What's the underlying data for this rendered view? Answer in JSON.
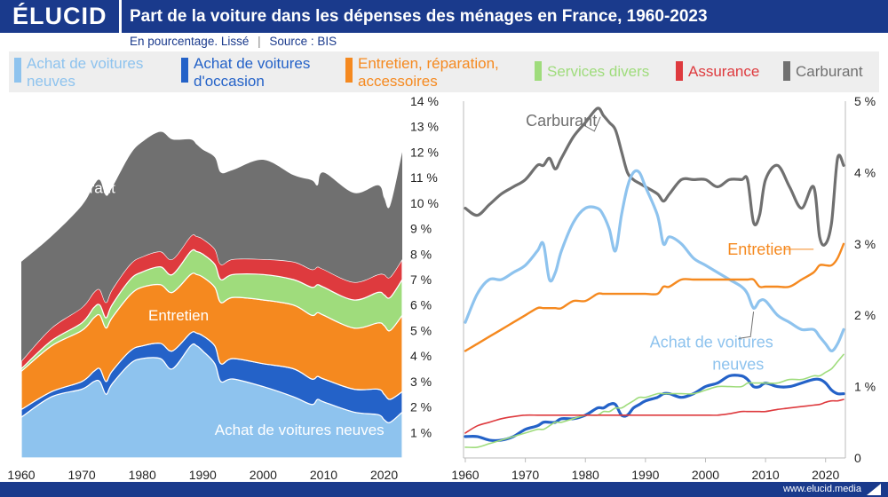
{
  "header": {
    "logo": "ÉLUCID",
    "title": "Part de la voiture dans les dépenses des ménages en France, 1960-2023",
    "subtitle_units": "En pourcentage. Lissé",
    "subtitle_sep": "|",
    "subtitle_source": "Source : BIS"
  },
  "legend": {
    "items": [
      {
        "line1": "Achat de voitures",
        "line2": "neuves",
        "color": "#8ec3ee"
      },
      {
        "line1": "Achat de voitures",
        "line2": "d'occasion",
        "color": "#2462c8"
      },
      {
        "line1": "Entretien, réparation,",
        "line2": "accessoires",
        "color": "#f5891f"
      },
      {
        "line1": "Services divers",
        "line2": "",
        "color": "#9fdc7c"
      },
      {
        "line1": "Assurance",
        "line2": "",
        "color": "#de3a3e"
      },
      {
        "line1": "Carburant",
        "line2": "",
        "color": "#707070"
      }
    ]
  },
  "footer": {
    "url": "www.elucid.media"
  },
  "chart_data": [
    {
      "type": "area",
      "stacked": true,
      "x": [
        1960,
        1965,
        1970,
        1972,
        1973,
        1974,
        1975,
        1978,
        1980,
        1983,
        1985,
        1988,
        1989,
        1990,
        1992,
        1993,
        1995,
        2000,
        2005,
        2008,
        2009,
        2010,
        2015,
        2019,
        2020,
        2021,
        2023
      ],
      "series": [
        {
          "name": "Achat de voitures neuves",
          "color": "#8ec3ee",
          "values": [
            1.6,
            2.4,
            2.7,
            3.0,
            3.0,
            2.5,
            2.9,
            3.7,
            3.9,
            3.9,
            3.5,
            4.4,
            4.4,
            4.2,
            3.7,
            3.0,
            3.1,
            2.8,
            2.4,
            2.1,
            2.3,
            2.2,
            1.8,
            1.7,
            1.5,
            1.4,
            1.8
          ]
        },
        {
          "name": "Achat de voitures d'occasion",
          "color": "#2462c8",
          "values": [
            0.3,
            0.2,
            0.3,
            0.4,
            0.5,
            0.5,
            0.5,
            0.5,
            0.5,
            0.6,
            0.7,
            0.5,
            0.5,
            0.6,
            0.7,
            0.7,
            0.8,
            0.9,
            1.1,
            1.0,
            0.9,
            0.9,
            0.9,
            1.0,
            1.0,
            0.9,
            0.8
          ]
        },
        {
          "name": "Entretien, réparation, accessoires",
          "color": "#f5891f",
          "values": [
            1.5,
            1.8,
            2.0,
            2.1,
            2.1,
            2.1,
            2.1,
            2.2,
            2.3,
            2.3,
            2.3,
            2.3,
            2.3,
            2.3,
            2.3,
            2.4,
            2.4,
            2.5,
            2.5,
            2.5,
            2.5,
            2.5,
            2.4,
            2.6,
            2.7,
            2.7,
            3.0
          ]
        },
        {
          "name": "Services divers",
          "color": "#9fdc7c",
          "values": [
            0.1,
            0.2,
            0.3,
            0.4,
            0.4,
            0.4,
            0.5,
            0.6,
            0.6,
            0.7,
            0.7,
            0.9,
            0.9,
            0.9,
            0.9,
            0.9,
            0.9,
            1.0,
            1.0,
            1.1,
            1.1,
            1.1,
            1.1,
            1.2,
            1.2,
            1.3,
            1.4
          ]
        },
        {
          "name": "Assurance",
          "color": "#de3a3e",
          "values": [
            0.3,
            0.5,
            0.6,
            0.6,
            0.6,
            0.6,
            0.6,
            0.6,
            0.6,
            0.6,
            0.6,
            0.6,
            0.6,
            0.6,
            0.6,
            0.6,
            0.6,
            0.6,
            0.7,
            0.7,
            0.7,
            0.7,
            0.7,
            0.7,
            0.8,
            0.8,
            0.8
          ]
        },
        {
          "name": "Carburant",
          "color": "#707070",
          "values": [
            3.9,
            3.6,
            4.0,
            4.2,
            4.3,
            4.2,
            4.0,
            4.3,
            4.5,
            4.7,
            4.7,
            3.8,
            3.6,
            3.5,
            3.6,
            3.6,
            3.5,
            3.9,
            3.4,
            3.5,
            3.2,
            3.8,
            3.5,
            3.5,
            3.0,
            2.8,
            4.2
          ]
        }
      ],
      "xlim": [
        1960,
        2023
      ],
      "ylim": [
        0,
        14
      ],
      "x_ticks": [
        "1960",
        "1970",
        "1980",
        "1990",
        "2000",
        "2010",
        "2020"
      ],
      "y_ticks": [
        "1 %",
        "2 %",
        "3 %",
        "4 %",
        "5 %",
        "6 %",
        "7 %",
        "8 %",
        "9 %",
        "10 %",
        "11 %",
        "12 %",
        "13 %",
        "14 %"
      ],
      "annotations": [
        {
          "text": "Carburant",
          "x": 1970,
          "y": 10.4,
          "color": "#ffffff"
        },
        {
          "text": "Entretien",
          "x": 1986,
          "y": 5.4,
          "color": "#ffffff"
        },
        {
          "text": "Achat de voitures neuves",
          "x": 2006,
          "y": 0.9,
          "color": "#ffffff"
        }
      ],
      "grid": false
    },
    {
      "type": "line",
      "x": [
        1960,
        1962,
        1964,
        1966,
        1968,
        1970,
        1972,
        1973,
        1974,
        1975,
        1976,
        1978,
        1980,
        1982,
        1983,
        1984,
        1985,
        1986,
        1987,
        1988,
        1989,
        1990,
        1992,
        1993,
        1994,
        1996,
        1998,
        2000,
        2002,
        2004,
        2006,
        2007,
        2008,
        2009,
        2010,
        2012,
        2014,
        2016,
        2018,
        2019,
        2020,
        2021,
        2022,
        2023
      ],
      "series": [
        {
          "name": "Carburant",
          "color": "#707070",
          "values": [
            3.5,
            3.4,
            3.55,
            3.7,
            3.8,
            3.9,
            4.1,
            4.1,
            4.2,
            4.05,
            4.2,
            4.5,
            4.7,
            4.9,
            4.8,
            4.7,
            4.6,
            4.3,
            4.0,
            3.9,
            3.85,
            3.8,
            3.7,
            3.6,
            3.7,
            3.9,
            3.9,
            3.9,
            3.8,
            3.9,
            3.9,
            3.9,
            3.3,
            3.4,
            3.9,
            4.1,
            3.8,
            3.5,
            3.8,
            3.1,
            3.0,
            3.3,
            4.2,
            4.1
          ]
        },
        {
          "name": "Achat de voitures neuves",
          "color": "#8ec3ee",
          "values": [
            1.9,
            2.3,
            2.5,
            2.5,
            2.6,
            2.7,
            2.9,
            3.0,
            2.5,
            2.6,
            2.9,
            3.3,
            3.5,
            3.5,
            3.4,
            3.2,
            2.9,
            3.4,
            3.8,
            4.0,
            4.0,
            3.8,
            3.4,
            3.0,
            3.1,
            3.0,
            2.8,
            2.7,
            2.6,
            2.5,
            2.4,
            2.3,
            2.1,
            2.2,
            2.2,
            2.0,
            1.9,
            1.8,
            1.8,
            1.7,
            1.6,
            1.5,
            1.6,
            1.8
          ]
        },
        {
          "name": "Entretien",
          "color": "#f5891f",
          "values": [
            1.5,
            1.6,
            1.7,
            1.8,
            1.9,
            2.0,
            2.1,
            2.1,
            2.1,
            2.1,
            2.1,
            2.2,
            2.2,
            2.3,
            2.3,
            2.3,
            2.3,
            2.3,
            2.3,
            2.3,
            2.3,
            2.3,
            2.3,
            2.4,
            2.4,
            2.5,
            2.5,
            2.5,
            2.5,
            2.5,
            2.5,
            2.5,
            2.5,
            2.4,
            2.4,
            2.4,
            2.4,
            2.5,
            2.6,
            2.7,
            2.7,
            2.7,
            2.8,
            3.0
          ]
        },
        {
          "name": "Achat de voitures d'occasion",
          "color": "#2462c8",
          "values": [
            0.3,
            0.3,
            0.25,
            0.25,
            0.3,
            0.4,
            0.45,
            0.5,
            0.5,
            0.5,
            0.55,
            0.55,
            0.6,
            0.7,
            0.7,
            0.75,
            0.75,
            0.6,
            0.6,
            0.7,
            0.75,
            0.8,
            0.85,
            0.9,
            0.9,
            0.85,
            0.9,
            1.0,
            1.05,
            1.15,
            1.15,
            1.1,
            1.0,
            1.0,
            1.05,
            1.0,
            1.0,
            1.05,
            1.1,
            1.1,
            1.05,
            0.95,
            0.9,
            0.9
          ]
        },
        {
          "name": "Services divers",
          "color": "#9fdc7c",
          "values": [
            0.15,
            0.15,
            0.2,
            0.25,
            0.3,
            0.35,
            0.4,
            0.4,
            0.45,
            0.5,
            0.5,
            0.55,
            0.6,
            0.6,
            0.65,
            0.65,
            0.7,
            0.7,
            0.75,
            0.8,
            0.85,
            0.85,
            0.9,
            0.9,
            0.9,
            0.9,
            0.9,
            0.95,
            1.0,
            1.0,
            1.0,
            1.05,
            1.05,
            1.05,
            1.05,
            1.05,
            1.1,
            1.1,
            1.15,
            1.15,
            1.2,
            1.25,
            1.35,
            1.45
          ]
        },
        {
          "name": "Assurance",
          "color": "#de3a3e",
          "values": [
            0.35,
            0.45,
            0.5,
            0.55,
            0.58,
            0.6,
            0.6,
            0.6,
            0.6,
            0.6,
            0.6,
            0.6,
            0.6,
            0.6,
            0.6,
            0.6,
            0.6,
            0.6,
            0.6,
            0.6,
            0.6,
            0.6,
            0.6,
            0.6,
            0.6,
            0.6,
            0.6,
            0.6,
            0.6,
            0.62,
            0.65,
            0.65,
            0.65,
            0.65,
            0.65,
            0.68,
            0.7,
            0.72,
            0.74,
            0.75,
            0.78,
            0.8,
            0.8,
            0.82
          ]
        }
      ],
      "xlim": [
        1960,
        2023
      ],
      "ylim": [
        0,
        5
      ],
      "x_ticks": [
        "1960",
        "1970",
        "1980",
        "1990",
        "2000",
        "2010",
        "2020"
      ],
      "y_ticks": [
        "0",
        "1 %",
        "2 %",
        "3 %",
        "4 %",
        "5 %"
      ],
      "annotations": [
        {
          "text": "Carburant",
          "color": "#707070",
          "x": 1976,
          "y": 4.65,
          "lines": [
            "Carburant"
          ]
        },
        {
          "text": "Entretien",
          "color": "#f5891f",
          "x": 2009,
          "y": 2.85,
          "lines": [
            "Entretien"
          ]
        },
        {
          "text": "Achat de voitures neuves",
          "color": "#8ec3ee",
          "x": 2001,
          "y": 1.55,
          "lines": [
            "Achat de voitures",
            "neuves"
          ]
        }
      ],
      "grid": false
    }
  ]
}
